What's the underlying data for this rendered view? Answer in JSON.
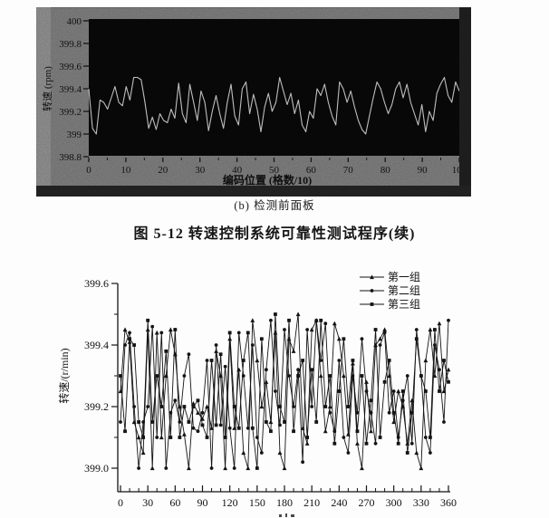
{
  "page": {
    "caption_b": "(b) 检测前面板",
    "figure_caption": "图 5-12  转速控制系统可靠性测试程序(续)"
  },
  "chart_data": [
    {
      "id": "front_panel_waveform",
      "type": "line",
      "title": "",
      "xlabel": "编码位置 (格数/10)",
      "ylabel": "转速 (rpm)",
      "xlim": [
        0,
        100
      ],
      "ylim": [
        398.8,
        400
      ],
      "x_ticks": [
        0,
        10,
        20,
        30,
        40,
        50,
        60,
        70,
        80,
        90,
        100
      ],
      "y_ticks": [
        "400",
        "399.8",
        "399.6",
        "399.4",
        "399.2",
        "399",
        "398.8"
      ],
      "grid": false,
      "panel_color": "#969696",
      "plot_background": "#0b0b0b",
      "line_color": "#f2f2f2",
      "values": [
        399.4,
        399.05,
        399.0,
        399.3,
        399.28,
        399.22,
        399.32,
        399.42,
        399.28,
        399.25,
        399.42,
        399.3,
        399.5,
        399.5,
        399.48,
        399.28,
        399.05,
        399.15,
        399.04,
        399.18,
        399.12,
        399.1,
        399.22,
        399.14,
        399.45,
        399.18,
        399.1,
        399.44,
        399.28,
        399.12,
        399.38,
        399.28,
        399.03,
        399.2,
        399.34,
        399.18,
        399.05,
        399.28,
        399.44,
        399.16,
        399.08,
        399.4,
        399.46,
        399.18,
        399.35,
        399.22,
        399.02,
        399.24,
        399.36,
        399.2,
        399.28,
        399.5,
        399.38,
        399.26,
        399.36,
        399.18,
        399.3,
        399.08,
        399.02,
        399.2,
        399.14,
        399.4,
        399.34,
        399.44,
        399.28,
        399.16,
        399.08,
        399.46,
        399.4,
        399.28,
        399.38,
        399.24,
        399.12,
        399.04,
        399.0,
        399.16,
        399.32,
        399.46,
        399.4,
        399.28,
        399.18,
        399.26,
        399.4,
        399.46,
        399.32,
        399.44,
        399.28,
        399.18,
        399.08,
        399.26,
        399.02,
        399.2,
        399.12,
        399.36,
        399.44,
        399.5,
        399.34,
        399.28,
        399.46,
        399.38
      ]
    },
    {
      "id": "reliability_test_groups",
      "type": "line",
      "title": "",
      "xlabel": "",
      "ylabel": "转速/(r/min)",
      "xlim": [
        0,
        360
      ],
      "ylim": [
        399.0,
        399.6
      ],
      "x_ticks": [
        0,
        30,
        60,
        90,
        120,
        150,
        180,
        210,
        240,
        270,
        300,
        330,
        360
      ],
      "y_ticks": [
        "399.6",
        "399.4",
        "399.2",
        "399.0"
      ],
      "grid": false,
      "legend_position": "top-right",
      "ink_color": "#141414",
      "x_step": 5,
      "series": [
        {
          "name": "第一组",
          "marker": "triangle",
          "values": [
            399.25,
            399.45,
            399.41,
            399.15,
            399.1,
            399.05,
            399.45,
            399.0,
            399.44,
            399.1,
            399.3,
            399.45,
            399.37,
            399.2,
            399.11,
            399.0,
            399.21,
            399.18,
            399.16,
            399.2,
            399.13,
            399.38,
            399.3,
            399.0,
            399.42,
            399.13,
            399.32,
            399.05,
            399.0,
            399.48,
            399.35,
            399.2,
            399.28,
            399.15,
            399.44,
            399.05,
            399.0,
            399.42,
            399.38,
            399.5,
            399.13,
            399.08,
            399.45,
            399.48,
            399.3,
            399.12,
            399.2,
            399.47,
            399.42,
            399.3,
            399.11,
            399.34,
            399.08,
            399.0,
            399.28,
            399.12,
            399.4,
            399.42,
            399.45,
            399.3,
            399.15,
            399.25,
            399.2,
            399.08,
            399.22,
            399.05,
            399.0,
            399.35,
            399.45,
            399.3,
            399.47,
            399.25,
            399.32
          ]
        },
        {
          "name": "第二组",
          "marker": "circle",
          "values": [
            399.15,
            399.4,
            399.44,
            399.2,
            399.0,
            399.15,
            399.2,
            399.46,
            399.1,
            399.44,
            399.0,
            399.18,
            399.22,
            399.15,
            399.3,
            399.37,
            399.13,
            399.12,
            399.18,
            399.35,
            399.0,
            399.4,
            399.14,
            399.33,
            399.13,
            399.0,
            399.44,
            399.3,
            399.13,
            399.4,
            399.1,
            399.05,
            399.32,
            399.48,
            399.25,
            399.14,
            399.45,
            399.3,
            399.2,
            399.32,
            399.02,
            399.45,
            399.2,
            399.48,
            399.35,
            399.47,
            399.18,
            399.12,
            399.35,
            399.1,
            399.05,
            399.3,
            399.18,
            399.42,
            399.25,
            399.18,
            399.08,
            399.4,
            399.44,
            399.18,
            399.25,
            399.1,
            399.22,
            399.3,
            399.08,
            399.45,
            399.3,
            399.1,
            399.05,
            399.4,
            399.32,
            399.15,
            399.48
          ]
        },
        {
          "name": "第三组",
          "marker": "square",
          "values": [
            399.3,
            399.12,
            399.42,
            399.4,
            399.15,
            399.1,
            399.48,
            399.15,
            399.3,
            399.2,
            399.38,
            399.1,
            399.45,
            399.1,
            399.2,
            399.15,
            399.2,
            399.22,
            399.14,
            399.1,
            399.35,
            399.14,
            399.37,
            399.1,
            399.44,
            399.2,
            399.13,
            399.35,
            399.44,
            399.13,
            399.0,
            399.42,
            399.15,
            399.12,
            399.5,
            399.2,
            399.15,
            399.48,
            399.12,
            399.3,
            399.35,
            399.1,
            399.32,
            399.15,
            399.48,
            399.2,
            399.3,
            399.08,
            399.25,
            399.42,
            399.2,
            399.35,
            399.12,
            399.3,
            399.08,
            399.22,
            399.45,
            399.1,
            399.28,
            399.35,
            399.18,
            399.08,
            399.25,
            399.05,
            399.18,
            399.42,
            399.3,
            399.25,
            399.1,
            399.45,
            399.25,
            399.35,
            399.28
          ]
        }
      ]
    }
  ]
}
